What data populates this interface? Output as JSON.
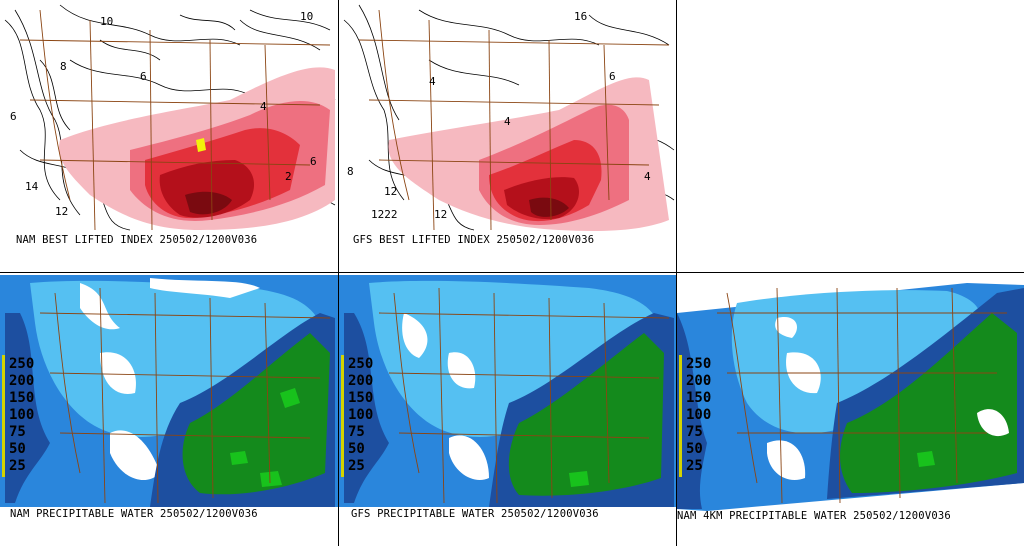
{
  "panels": [
    {
      "id": "nam-li",
      "caption": "NAM BEST LIFTED INDEX 250502/1200V036"
    },
    {
      "id": "gfs-li",
      "caption": "GFS BEST LIFTED INDEX 250502/1200V036"
    },
    {
      "id": "nam-pw",
      "caption": "NAM PRECIPITABLE WATER 250502/1200V036"
    },
    {
      "id": "gfs-pw",
      "caption": "GFS PRECIPITABLE WATER 250502/1200V036"
    },
    {
      "id": "nam4km-pw",
      "caption": "NAM 4KM PRECIPITABLE WATER 250502/1200V036"
    }
  ],
  "pw_legend": [
    "250",
    "200",
    "150",
    "100",
    "75",
    "50",
    "25"
  ],
  "li_contour_labels_nam": [
    "10",
    "8",
    "6",
    "4",
    "2",
    "14",
    "12",
    "6",
    "6",
    "10"
  ],
  "li_contour_labels_gfs": [
    "16",
    "4",
    "4",
    "6",
    "8",
    "12",
    "1222",
    "12",
    "4"
  ],
  "colors": {
    "li_light": "#f6b9c0",
    "li_mid": "#ee7080",
    "li_strong": "#e3313b",
    "li_deep": "#b4101b",
    "li_darkest": "#7a0a10",
    "li_yellow": "#f2f20a",
    "pw_light": "#55c0f2",
    "pw_mid": "#2a86dc",
    "pw_dark": "#1d4fa0",
    "pw_green": "#148a1c",
    "pw_bright_green": "#18c21c",
    "border": "#8b4513",
    "legend_bar": "#d4d400"
  }
}
